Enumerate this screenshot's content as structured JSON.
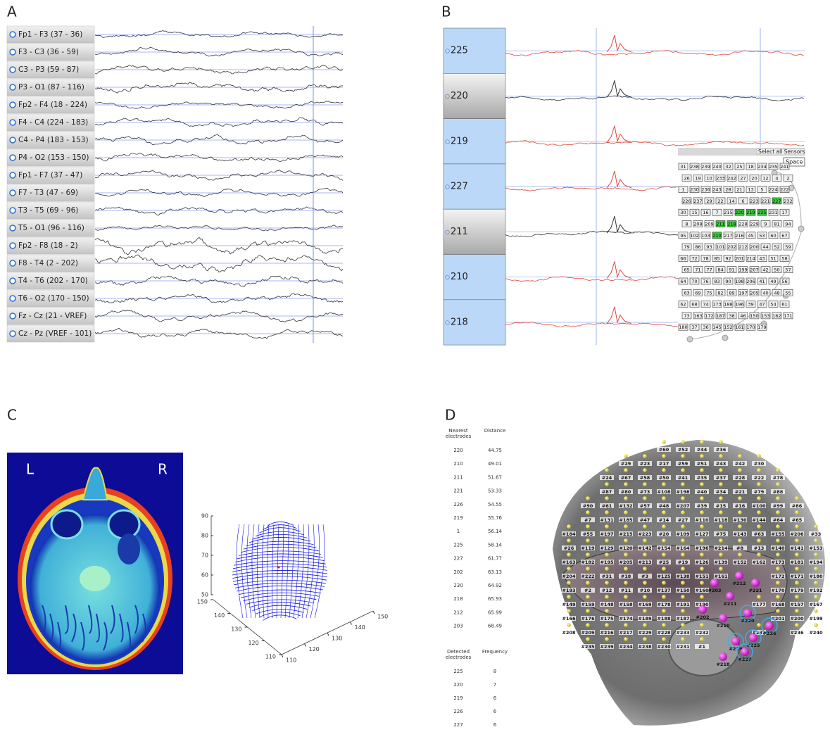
{
  "panel_labels": [
    "A",
    "B",
    "C",
    "D"
  ],
  "panel_a": {
    "channels": [
      "Fp1 - F3 (37 - 36)",
      "F3 - C3 (36 - 59)",
      "C3 - P3 (59 - 87)",
      "P3 - O1 (87 - 116)",
      "Fp2 - F4 (18 - 224)",
      "F4 - C4 (224 - 183)",
      "C4 - P4 (183 - 153)",
      "P4 - O2 (153 - 150)",
      "Fp1 - F7 (37 - 47)",
      "F7 - T3 (47 - 69)",
      "T3 - T5 (69 - 96)",
      "T5 - O1 (96 - 116)",
      "Fp2 - F8 (18 - 2)",
      "F8 - T4 (2 - 202)",
      "T4 - T6 (202 - 170)",
      "T6 - O2 (170 - 150)",
      "Fz - Cz (21 - VREF)",
      "Cz - Pz (VREF - 101)"
    ]
  },
  "panel_b": {
    "channels": [
      "225",
      "220",
      "219",
      "227",
      "211",
      "210",
      "218"
    ],
    "sensor_map": {
      "button": "Select all Sensors",
      "field": "Space",
      "sensors": [
        "31",
        "238",
        "239",
        "240",
        "32",
        "25",
        "18",
        "234",
        "235",
        "241",
        "26",
        "19",
        "10",
        "233",
        "242",
        "27",
        "20",
        "12",
        "4",
        "2",
        "1",
        "230",
        "236",
        "243",
        "28",
        "21",
        "13",
        "5",
        "224",
        "222",
        "226",
        "237",
        "29",
        "22",
        "14",
        "6",
        "223",
        "221",
        "227",
        "232",
        "30",
        "15",
        "16",
        "7",
        "215",
        "220",
        "219",
        "225",
        "231",
        "17",
        "8",
        "208",
        "209",
        "211",
        "218",
        "228",
        "229",
        "9",
        "81",
        "94",
        "95",
        "102",
        "103",
        "210",
        "217",
        "216",
        "45",
        "53",
        "60",
        "67",
        "79",
        "86",
        "93",
        "101",
        "202",
        "212",
        "200",
        "44",
        "52",
        "59",
        "66",
        "72",
        "78",
        "85",
        "92",
        "201",
        "214",
        "43",
        "51",
        "58",
        "65",
        "71",
        "77",
        "84",
        "91",
        "199",
        "207",
        "42",
        "50",
        "57",
        "64",
        "70",
        "76",
        "83",
        "90",
        "198",
        "206",
        "41",
        "49",
        "56",
        "63",
        "69",
        "75",
        "82",
        "89",
        "197",
        "205",
        "40",
        "48",
        "55",
        "62",
        "68",
        "74",
        "173",
        "188",
        "196",
        "39",
        "47",
        "54",
        "61",
        "73",
        "163",
        "172",
        "187",
        "38",
        "46",
        "150",
        "153",
        "162",
        "171",
        "180",
        "37",
        "36",
        "145",
        "152",
        "161",
        "170",
        "179"
      ],
      "selected": [
        "220",
        "219",
        "225",
        "227",
        "211",
        "210",
        "218"
      ]
    }
  },
  "panel_c": {
    "mri": {
      "left": "L",
      "right": "R"
    },
    "plot": {
      "zlim": [
        50,
        90
      ],
      "zticks": [
        90,
        80,
        70,
        60,
        50
      ],
      "ylim": [
        110,
        150
      ],
      "yticks": [
        150,
        140,
        130,
        120,
        110
      ],
      "xlim": [
        110,
        150
      ],
      "xticks": [
        110,
        120,
        130,
        140,
        150
      ]
    }
  },
  "panel_d": {
    "nearest": {
      "headers": [
        "Nearest electrodes",
        "Distance"
      ],
      "rows": [
        [
          "220",
          "44.75"
        ],
        [
          "210",
          "49.01"
        ],
        [
          "211",
          "51.67"
        ],
        [
          "221",
          "53.33"
        ],
        [
          "226",
          "54.55"
        ],
        [
          "219",
          "55.76"
        ],
        [
          "1",
          "56.14"
        ],
        [
          "225",
          "58.14"
        ],
        [
          "227",
          "61.77"
        ],
        [
          "202",
          "63.13"
        ],
        [
          "230",
          "64.92"
        ],
        [
          "218",
          "65.93"
        ],
        [
          "212",
          "65.99"
        ],
        [
          "203",
          "68.49"
        ]
      ]
    },
    "detected": {
      "headers": [
        "Detected electrodes",
        "Frequency"
      ],
      "rows": [
        [
          "225",
          "8"
        ],
        [
          "220",
          "7"
        ],
        [
          "219",
          "6"
        ],
        [
          "226",
          "6"
        ],
        [
          "227",
          "6"
        ]
      ]
    },
    "electrodes": [
      "#60",
      "#52",
      "#44",
      "#36",
      "#29",
      "#23",
      "#17",
      "#59",
      "#51",
      "#43",
      "#42",
      "#30",
      "#24",
      "#67",
      "#58",
      "#50",
      "#41",
      "#35",
      "#37",
      "#28",
      "#22",
      "#78",
      "#87",
      "#80",
      "#73",
      "#108",
      "#198",
      "#40",
      "#34",
      "#21",
      "#79",
      "#88",
      "#90",
      "#61",
      "#132",
      "#57",
      "#48",
      "#207",
      "#39",
      "#15",
      "#16",
      "#100",
      "#99",
      "#86",
      "#7",
      "#131",
      "#185",
      "#47",
      "#14",
      "#27",
      "#110",
      "#118",
      "#130",
      "#144",
      "#64",
      "#65",
      "#184",
      "#55",
      "#197",
      "#215",
      "#223",
      "#20",
      "#109",
      "#127",
      "#75",
      "#143",
      "#63",
      "#155",
      "#206",
      "#33",
      "#26",
      "#119",
      "#129",
      "#120",
      "#142",
      "#154",
      "#164",
      "#196",
      "#214",
      "#8",
      "#13",
      "#140",
      "#141",
      "#153",
      "#163",
      "#182",
      "#195",
      "#205",
      "#213",
      "#25",
      "#19",
      "#126",
      "#139",
      "#152",
      "#162",
      "#173",
      "#181",
      "#194",
      "#204",
      "#222",
      "#31",
      "#18",
      "#3",
      "#125",
      "#138",
      "#151",
      "#161",
      "#172",
      "#171",
      "#180",
      "#193",
      "#2",
      "#12",
      "#11",
      "#10",
      "#137",
      "#150",
      "#160",
      "#170",
      "#179",
      "#192",
      "#149",
      "#159",
      "#148",
      "#158",
      "#169",
      "#178",
      "#191",
      "#190",
      "#177",
      "#168",
      "#157",
      "#167",
      "#166",
      "#176",
      "#175",
      "#174",
      "#189",
      "#188",
      "#187",
      "#201",
      "#200",
      "#199",
      "#208",
      "#209",
      "#216",
      "#217",
      "#229",
      "#228",
      "#233",
      "#232",
      "#237",
      "#236",
      "#240",
      "#235",
      "#239",
      "#234",
      "#238",
      "#230",
      "#231",
      "#1"
    ],
    "stimulated": [
      "#203",
      "#221",
      "#212",
      "#211",
      "#202",
      "#210",
      "#220",
      "#226",
      "#219",
      "#225",
      "#227",
      "#218"
    ],
    "circled": [
      "#220",
      "#226",
      "#219",
      "#225",
      "#227"
    ]
  }
}
